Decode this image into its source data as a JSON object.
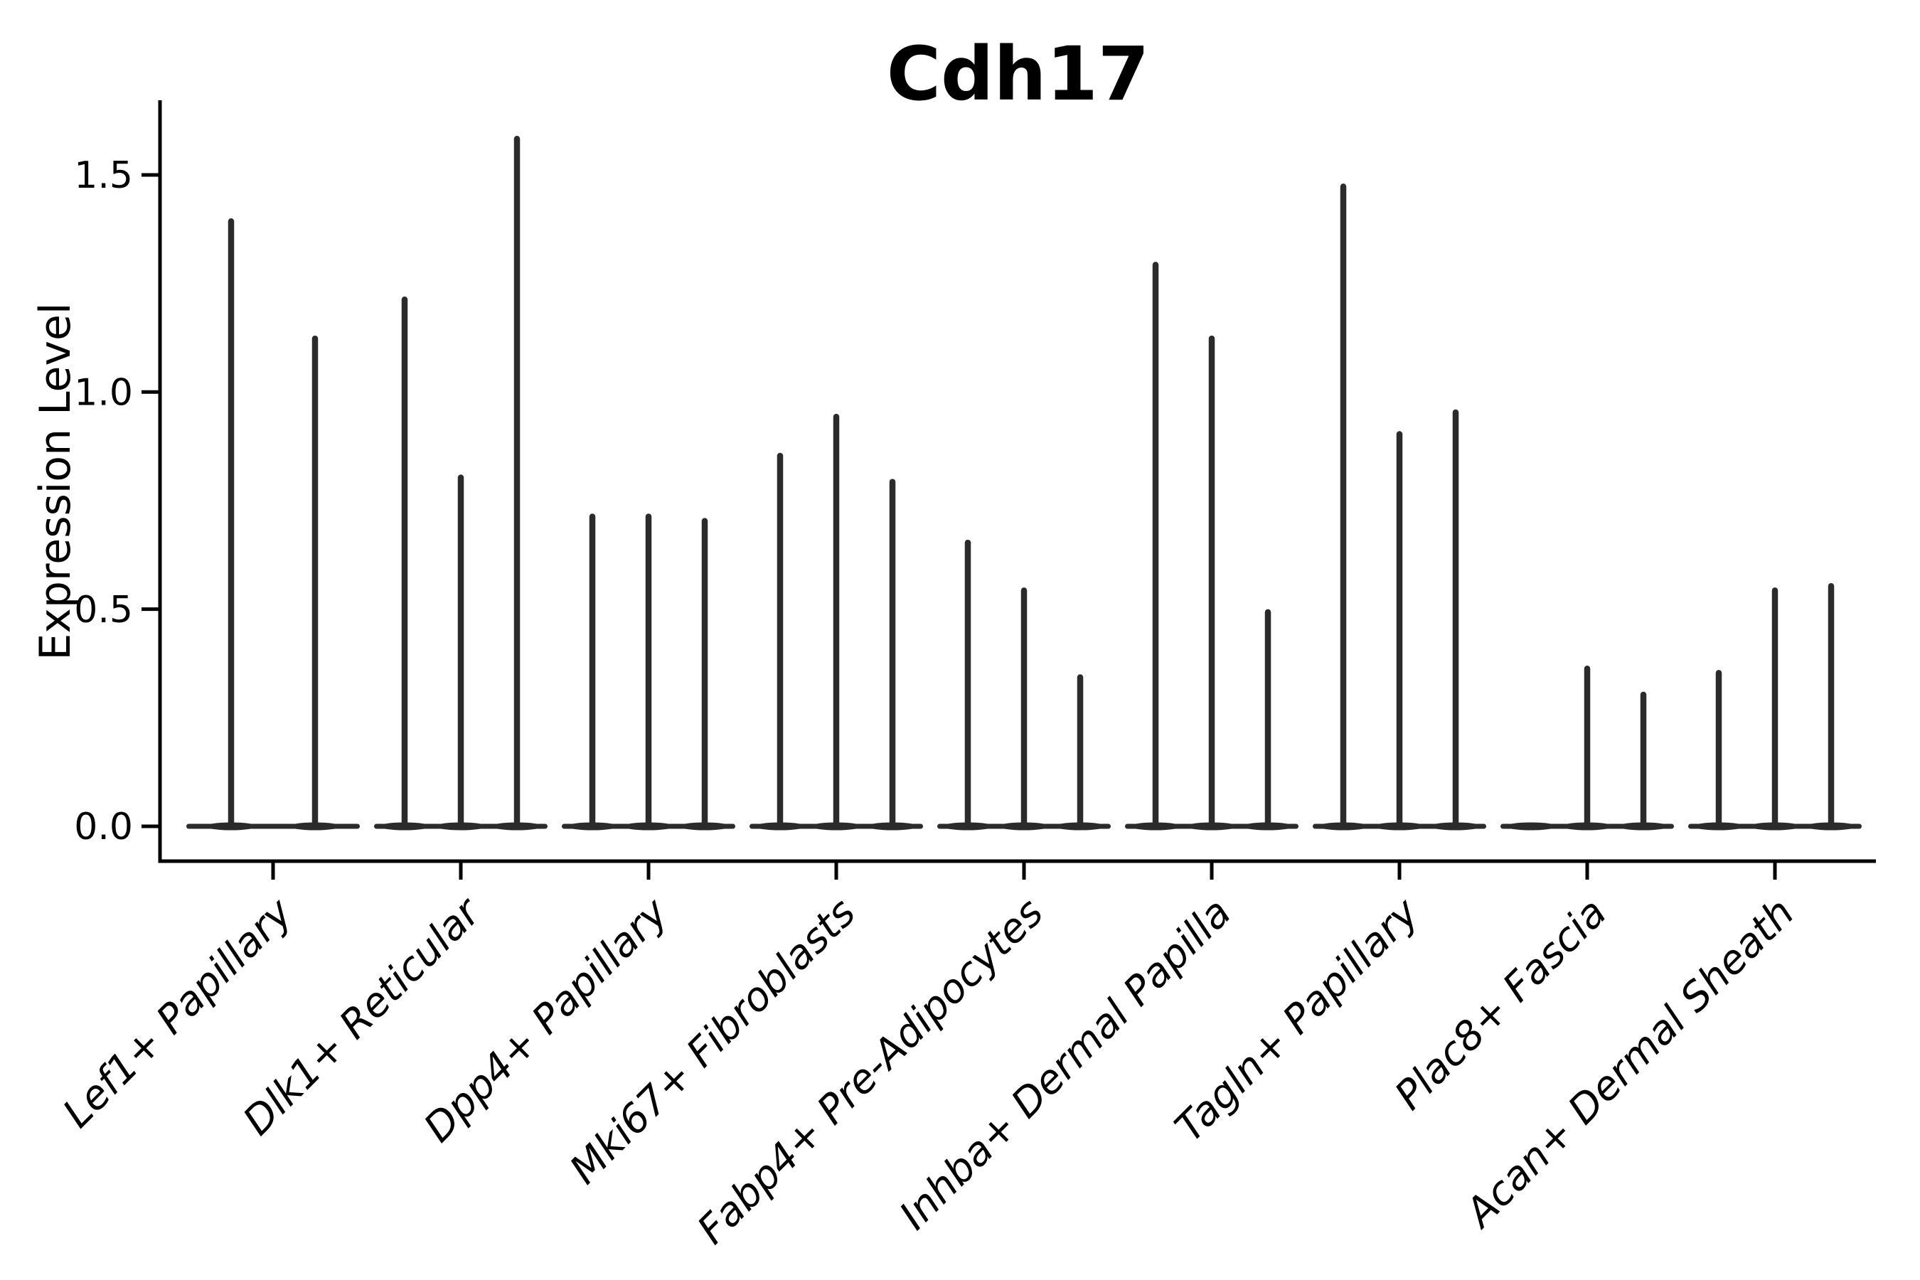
{
  "chart_data": {
    "type": "violin",
    "title": "Cdh17",
    "ylabel": "Expression Level",
    "xlabel": "",
    "ytick_labels": [
      "0.0",
      "0.5",
      "1.0",
      "1.5"
    ],
    "ytick_values": [
      0.0,
      0.5,
      1.0,
      1.5
    ],
    "ylim": [
      -0.08,
      1.67
    ],
    "grid": false,
    "legend": "none",
    "style_note": "narrow spike-like violins rising from a flat base at 0; dark gray on white",
    "violin_color": "#2b2b2b",
    "axis_color": "#000000",
    "categories": [
      "Lef1+ Papillary",
      "Dlk1+ Reticular",
      "Dpp4+ Papillary",
      "Mki67+ Fibroblasts",
      "Fabp4+ Pre-Adipocytes",
      "Inhba+ Dermal Papilla",
      "Tagln+ Papillary",
      "Plac8+ Fascia",
      "Acan+ Dermal Sheath"
    ],
    "groups": [
      {
        "label": "Lef1+ Papillary",
        "violin_peaks": [
          1.4,
          1.13
        ]
      },
      {
        "label": "Dlk1+ Reticular",
        "violin_peaks": [
          1.22,
          0.81,
          1.59
        ]
      },
      {
        "label": "Dpp4+ Papillary",
        "violin_peaks": [
          0.72,
          0.72,
          0.71
        ]
      },
      {
        "label": "Mki67+ Fibroblasts",
        "violin_peaks": [
          0.86,
          0.95,
          0.8
        ]
      },
      {
        "label": "Fabp4+ Pre-Adipocytes",
        "violin_peaks": [
          0.66,
          0.55,
          0.35
        ]
      },
      {
        "label": "Inhba+ Dermal Papilla",
        "violin_peaks": [
          1.3,
          1.13,
          0.5
        ]
      },
      {
        "label": "Tagln+ Papillary",
        "violin_peaks": [
          1.48,
          0.91,
          0.96
        ]
      },
      {
        "label": "Plac8+ Fascia",
        "violin_peaks": [
          0.0,
          0.37,
          0.31
        ]
      },
      {
        "label": "Acan+ Dermal Sheath",
        "violin_peaks": [
          0.36,
          0.55,
          0.56
        ]
      }
    ]
  }
}
